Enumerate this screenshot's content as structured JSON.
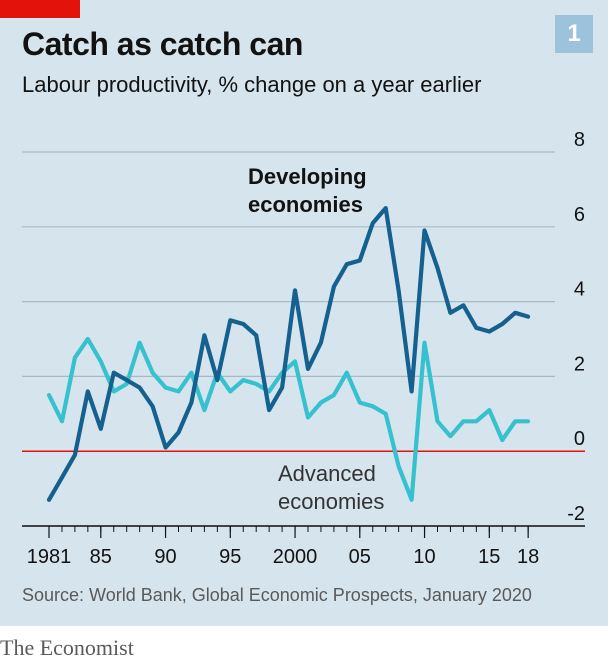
{
  "header": {
    "title": "Catch as catch can",
    "subtitle": "Labour productivity, % change on a year earlier",
    "badge": "1"
  },
  "footer": {
    "source": "Source: World Bank, Global Economic Prospects, January 2020",
    "brand": "The Economist"
  },
  "colors": {
    "background": "#d6e4ee",
    "accent_red": "#e3120b",
    "developing": "#14618f",
    "advanced": "#36c1cf",
    "zero_line": "#e3120b",
    "grid": "#a8b9c6"
  },
  "chart_data": {
    "type": "line",
    "title": "Catch as catch can",
    "subtitle": "Labour productivity, % change on a year earlier",
    "x": [
      1981,
      1982,
      1983,
      1984,
      1985,
      1986,
      1987,
      1988,
      1989,
      1990,
      1991,
      1992,
      1993,
      1994,
      1995,
      1996,
      1997,
      1998,
      1999,
      2000,
      2001,
      2002,
      2003,
      2004,
      2005,
      2006,
      2007,
      2008,
      2009,
      2010,
      2011,
      2012,
      2013,
      2014,
      2015,
      2016,
      2017,
      2018
    ],
    "xlim": [
      1979,
      2021
    ],
    "ylim": [
      -2,
      8
    ],
    "y_axis_side": "right",
    "grid": true,
    "xticks": [
      1981,
      1985,
      1990,
      1995,
      2000,
      2005,
      2010,
      2015,
      2018
    ],
    "xtick_labels": [
      "1981",
      "85",
      "90",
      "95",
      "2000",
      "05",
      "10",
      "15",
      "18"
    ],
    "yticks": [
      -2,
      0,
      2,
      4,
      6,
      8
    ],
    "ytick_labels": [
      "-2",
      "0",
      "2",
      "4",
      "6",
      "8"
    ],
    "series": [
      {
        "name": "Developing economies",
        "label_lines": [
          "Developing",
          "economies"
        ],
        "values": [
          -1.3,
          -0.7,
          -0.1,
          1.6,
          0.6,
          2.1,
          1.9,
          1.7,
          1.2,
          0.1,
          0.5,
          1.3,
          3.1,
          1.9,
          3.5,
          3.4,
          3.1,
          1.1,
          1.7,
          4.3,
          2.2,
          2.9,
          4.4,
          5.0,
          5.1,
          6.1,
          6.5,
          4.3,
          1.6,
          5.9,
          4.9,
          3.7,
          3.9,
          3.3,
          3.2,
          3.4,
          3.7,
          3.6
        ]
      },
      {
        "name": "Advanced economies",
        "label_lines": [
          "Advanced",
          "economies"
        ],
        "values": [
          1.5,
          0.8,
          2.5,
          3.0,
          2.4,
          1.6,
          1.8,
          2.9,
          2.1,
          1.7,
          1.6,
          2.1,
          1.1,
          2.1,
          1.6,
          1.9,
          1.8,
          1.6,
          2.1,
          2.4,
          0.9,
          1.3,
          1.5,
          2.1,
          1.3,
          1.2,
          1.0,
          -0.4,
          -1.3,
          2.9,
          0.8,
          0.4,
          0.8,
          0.8,
          1.1,
          0.3,
          0.8,
          0.8
        ]
      }
    ]
  }
}
